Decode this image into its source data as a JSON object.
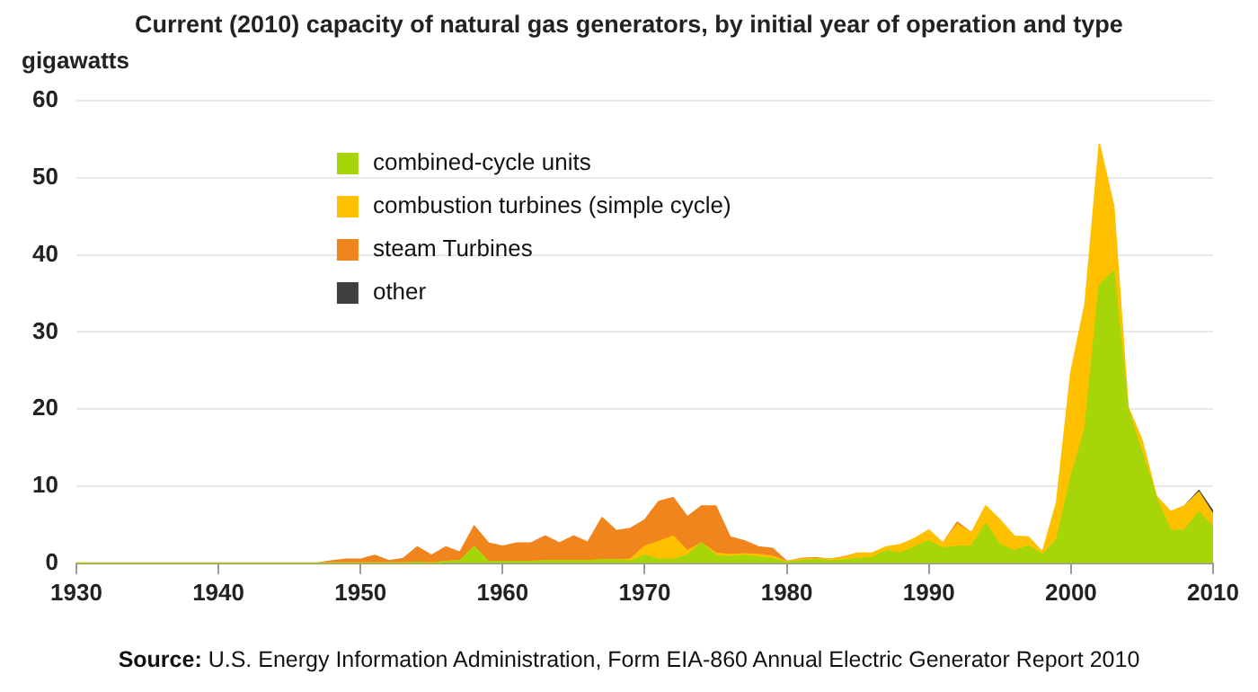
{
  "chart_data": {
    "type": "area",
    "title": "Current (2010)  capacity of natural gas generators, by initial year of operation and type",
    "ylabel": "gigawatts",
    "annotations": [
      "Source: U.S. Energy Information Administration, Form EIA-860 Annual Electric Generator Report 2010"
    ],
    "x": [
      1930,
      1931,
      1932,
      1933,
      1934,
      1935,
      1936,
      1937,
      1938,
      1939,
      1940,
      1941,
      1942,
      1943,
      1944,
      1945,
      1946,
      1947,
      1948,
      1949,
      1950,
      1951,
      1952,
      1953,
      1954,
      1955,
      1956,
      1957,
      1958,
      1959,
      1960,
      1961,
      1962,
      1963,
      1964,
      1965,
      1966,
      1967,
      1968,
      1969,
      1970,
      1971,
      1972,
      1973,
      1974,
      1975,
      1976,
      1977,
      1978,
      1979,
      1980,
      1981,
      1982,
      1983,
      1984,
      1985,
      1986,
      1987,
      1988,
      1989,
      1990,
      1991,
      1992,
      1993,
      1994,
      1995,
      1996,
      1997,
      1998,
      1999,
      2000,
      2001,
      2002,
      2003,
      2004,
      2005,
      2006,
      2007,
      2008,
      2009,
      2010
    ],
    "stacked": true,
    "series": [
      {
        "name": "combined-cycle units",
        "color": "#a6d60a",
        "values": [
          0,
          0,
          0,
          0,
          0,
          0,
          0,
          0,
          0,
          0,
          0,
          0,
          0,
          0,
          0,
          0,
          0,
          0,
          0,
          0,
          0,
          0,
          0,
          0,
          0.1,
          0,
          0.2,
          0.3,
          2.1,
          0.2,
          0.2,
          0.2,
          0.2,
          0.3,
          0.3,
          0.3,
          0.3,
          0.4,
          0.4,
          0.3,
          1.0,
          0.5,
          0.5,
          1.0,
          2.6,
          1.0,
          0.8,
          1.0,
          0.8,
          0.6,
          0.1,
          0.3,
          0.5,
          0.3,
          0.4,
          0.6,
          0.7,
          1.6,
          1.3,
          2.1,
          2.9,
          1.9,
          2.2,
          2.2,
          5.1,
          2.4,
          1.6,
          2.2,
          1.1,
          3.1,
          11.1,
          17.5,
          36.0,
          37.9,
          19.9,
          14.3,
          8.5,
          4.2,
          4.3,
          6.6,
          4.7
        ]
      },
      {
        "name": "combustion turbines (simple cycle)",
        "color": "#ffc000",
        "values": [
          0,
          0,
          0,
          0,
          0,
          0,
          0,
          0,
          0,
          0,
          0,
          0,
          0,
          0,
          0,
          0,
          0,
          0,
          0,
          0,
          0,
          0,
          0,
          0,
          0,
          0,
          0,
          0,
          0,
          0,
          0,
          0,
          0,
          0,
          0,
          0,
          0,
          0,
          0,
          0.2,
          1.2,
          2.3,
          3.0,
          0.6,
          0,
          0.3,
          0.3,
          0.2,
          0.3,
          0.3,
          0.1,
          0.2,
          0.1,
          0.2,
          0.3,
          0.7,
          0.6,
          0.5,
          1.1,
          1.1,
          1.4,
          0.7,
          2.8,
          1.7,
          2.3,
          3.2,
          1.9,
          1.2,
          0.3,
          4.8,
          13.6,
          16.1,
          18.3,
          8.4,
          0.4,
          1.6,
          0.2,
          2.5,
          3.1,
          2.6,
          1.6
        ]
      },
      {
        "name": "steam Turbines",
        "color": "#f0851e",
        "values": [
          null,
          null,
          null,
          null,
          null,
          null,
          null,
          null,
          null,
          null,
          null,
          null,
          null,
          null,
          null,
          null,
          null,
          0,
          0.3,
          0.5,
          0.5,
          1.0,
          0.3,
          0.6,
          2.0,
          1.0,
          1.9,
          1.1,
          2.7,
          2.4,
          2.0,
          2.4,
          2.4,
          3.2,
          2.3,
          3.2,
          2.4,
          5.5,
          3.8,
          4.0,
          3.4,
          5.2,
          5.0,
          4.4,
          4.8,
          6.1,
          2.3,
          1.7,
          1.0,
          1.0,
          0,
          0.1,
          0.1,
          0,
          0.1,
          0,
          null,
          null,
          null,
          null,
          null,
          0,
          0.3,
          0,
          null,
          null,
          null,
          null,
          null,
          null,
          null,
          null,
          null,
          null,
          null,
          null,
          null,
          null,
          null,
          null,
          null
        ]
      },
      {
        "name": "other",
        "color": "#404040",
        "values": [
          null,
          null,
          null,
          null,
          null,
          null,
          null,
          null,
          null,
          null,
          null,
          null,
          null,
          null,
          null,
          null,
          null,
          null,
          null,
          null,
          null,
          null,
          null,
          null,
          null,
          null,
          null,
          null,
          null,
          null,
          null,
          null,
          null,
          null,
          null,
          null,
          null,
          null,
          null,
          null,
          null,
          null,
          null,
          null,
          null,
          null,
          null,
          null,
          null,
          null,
          null,
          null,
          null,
          null,
          null,
          null,
          null,
          null,
          null,
          null,
          null,
          null,
          null,
          null,
          null,
          null,
          null,
          null,
          null,
          null,
          null,
          null,
          null,
          null,
          null,
          null,
          null,
          null,
          0,
          0.2,
          0.4
        ]
      }
    ],
    "xlim": [
      1930,
      2010
    ],
    "xticks": [
      1930,
      1940,
      1950,
      1960,
      1970,
      1980,
      1990,
      2000,
      2010
    ],
    "ylim": [
      0,
      60
    ],
    "yticks": [
      0,
      10,
      20,
      30,
      40,
      50,
      60
    ],
    "grid": "y",
    "legend": "top left"
  }
}
